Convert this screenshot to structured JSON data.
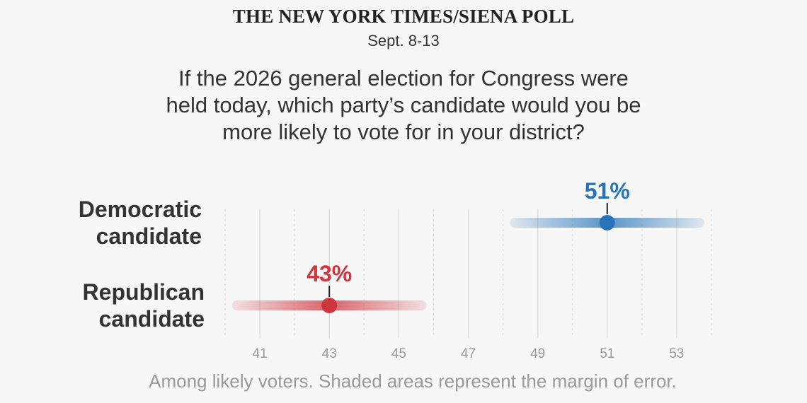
{
  "header": {
    "title": "THE NEW YORK TIMES/SIENA POLL",
    "date": "Sept. 8-13"
  },
  "question": {
    "lines": [
      "If the 2026 general election for Congress were",
      "held today, which party’s candidate would you be",
      "more likely to vote for in your district?"
    ]
  },
  "footnote": "Among likely voters. Shaded areas represent the margin of error.",
  "colors": {
    "democratic": "#2874b8",
    "republican": "#d0343c",
    "grid": "#dddddd",
    "tick_label": "#999999"
  },
  "chart_data": {
    "type": "dot-interval",
    "title": "",
    "xlabel": "",
    "ylabel": "",
    "xlim": [
      40,
      54
    ],
    "x_ticks": [
      41,
      43,
      45,
      47,
      49,
      51,
      53
    ],
    "x_minor_ticks": [
      40,
      42,
      44,
      46,
      48,
      50,
      52,
      54
    ],
    "grid": true,
    "series": [
      {
        "name": "Democratic candidate",
        "label_lines": [
          "Democratic",
          "candidate"
        ],
        "value": 51,
        "value_label": "51%",
        "interval": [
          48.2,
          53.8
        ],
        "color": "#2874b8"
      },
      {
        "name": "Republican candidate",
        "label_lines": [
          "Republican",
          "candidate"
        ],
        "value": 43,
        "value_label": "43%",
        "interval": [
          40.2,
          45.8
        ],
        "color": "#d0343c"
      }
    ]
  }
}
